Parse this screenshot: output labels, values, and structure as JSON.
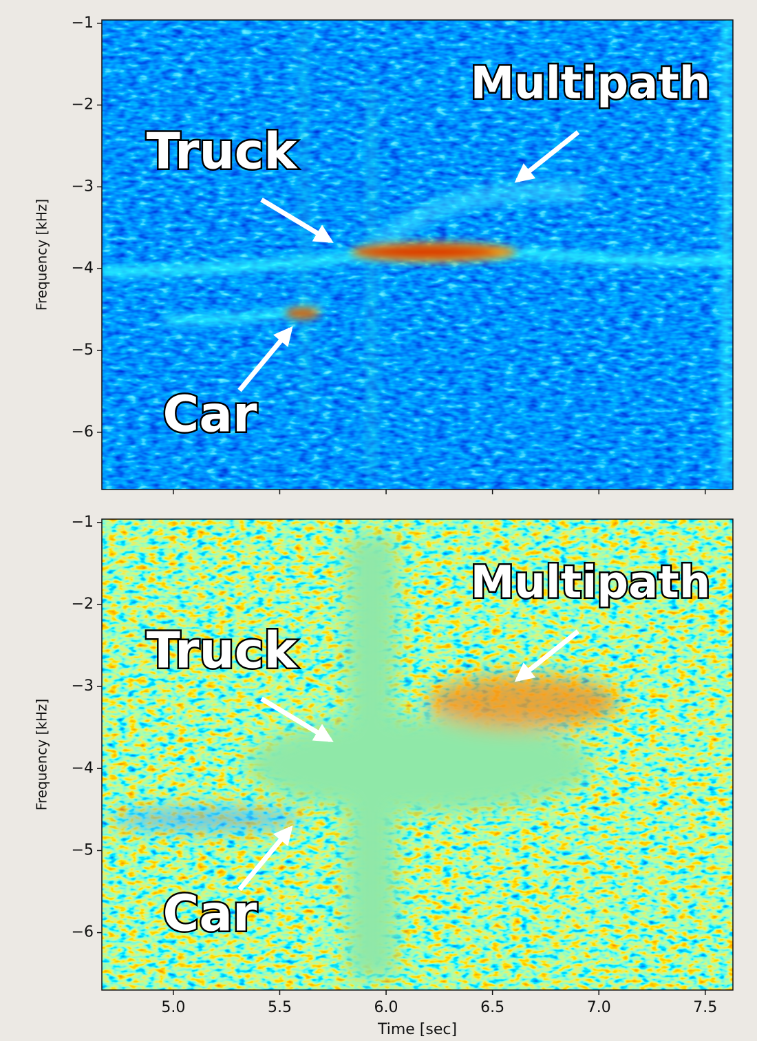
{
  "chart_data": [
    {
      "type": "heatmap",
      "ylabel": "Frequency [kHz]",
      "xlim": [
        4.664,
        7.63
      ],
      "ylim": [
        -6.7,
        -0.96
      ],
      "xticks": [
        5,
        5.5,
        6,
        6.5,
        7,
        7.5
      ],
      "yticks": [
        {
          "value": -1,
          "label": "−1"
        },
        {
          "value": -2,
          "label": "−2"
        },
        {
          "value": -3,
          "label": "−3"
        },
        {
          "value": -4,
          "label": "−4"
        },
        {
          "value": -5,
          "label": "−5"
        },
        {
          "value": -6,
          "label": "−6"
        }
      ],
      "annotations": [
        "Truck",
        "Multipath",
        "Car"
      ]
    },
    {
      "type": "heatmap",
      "ylabel": "Frequency [kHz]",
      "xlabel": "Time [sec]",
      "xlim": [
        4.664,
        7.63
      ],
      "ylim": [
        -6.7,
        -0.96
      ],
      "xticks": [
        {
          "value": 5,
          "label": "5.0"
        },
        5.5,
        {
          "value": 6,
          "label": "6.0"
        },
        6.5,
        {
          "value": 7,
          "label": "7.0"
        },
        7.5
      ],
      "yticks": [
        {
          "value": -1,
          "label": "−1"
        },
        {
          "value": -2,
          "label": "−2"
        },
        {
          "value": -3,
          "label": "−3"
        },
        {
          "value": -4,
          "label": "−4"
        },
        {
          "value": -5,
          "label": "−5"
        },
        {
          "value": -6,
          "label": "−6"
        }
      ],
      "annotations": [
        "Truck",
        "Multipath",
        "Car"
      ]
    }
  ]
}
